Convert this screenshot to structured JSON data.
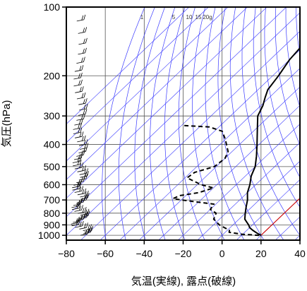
{
  "chart_data": {
    "type": "skew-t",
    "xlabel": "気温(実線), 露点(破線)",
    "ylabel": "気圧(hPa)",
    "xlim": [
      -80,
      40
    ],
    "ylim": [
      1050,
      100
    ],
    "y_scale": "log",
    "x_ticks": [
      -80,
      -60,
      -40,
      -20,
      0,
      20,
      40
    ],
    "x_tick_labels": [
      "−80",
      "−60",
      "−40",
      "−20",
      "0",
      "20",
      "40"
    ],
    "y_ticks": [
      100,
      200,
      300,
      400,
      500,
      600,
      700,
      800,
      900,
      1000
    ],
    "y_tick_labels": [
      "100",
      "200",
      "300",
      "400",
      "500",
      "600",
      "700",
      "800",
      "900",
      "1000"
    ],
    "mixing_ratio_labels": [
      "1",
      "5",
      "10",
      "15",
      "20g"
    ],
    "grid": true,
    "series": [
      {
        "style": "solid",
        "points": [
          [
            1000,
            20
          ],
          [
            980,
            17
          ],
          [
            950,
            13
          ],
          [
            925,
            10
          ],
          [
            900,
            8
          ],
          [
            880,
            6
          ],
          [
            850,
            3
          ],
          [
            800,
            0
          ],
          [
            750,
            -3
          ],
          [
            700,
            -6
          ],
          [
            650,
            -10
          ],
          [
            600,
            -13
          ],
          [
            550,
            -17
          ],
          [
            500,
            -20
          ],
          [
            450,
            -25
          ],
          [
            400,
            -31
          ],
          [
            350,
            -38
          ],
          [
            300,
            -46
          ],
          [
            270,
            -49
          ],
          [
            250,
            -52
          ],
          [
            230,
            -55
          ],
          [
            200,
            -57
          ],
          [
            170,
            -60
          ],
          [
            150,
            -61
          ],
          [
            130,
            -62
          ],
          [
            115,
            -63
          ],
          [
            100,
            -64
          ]
        ]
      },
      {
        "style": "dashed",
        "points": [
          [
            1000,
            19
          ],
          [
            990,
            10
          ],
          [
            970,
            2
          ],
          [
            950,
            1
          ],
          [
            925,
            -3
          ],
          [
            900,
            -7
          ],
          [
            850,
            -13
          ],
          [
            800,
            -15
          ],
          [
            770,
            -20
          ],
          [
            730,
            -21
          ],
          [
            700,
            -40
          ],
          [
            690,
            -45
          ],
          [
            670,
            -43
          ],
          [
            650,
            -35
          ],
          [
            620,
            -30
          ],
          [
            600,
            -38
          ],
          [
            560,
            -49
          ],
          [
            530,
            -48
          ],
          [
            500,
            -41
          ],
          [
            460,
            -40
          ],
          [
            430,
            -42
          ],
          [
            380,
            -50
          ],
          [
            350,
            -56
          ],
          [
            335,
            -65
          ],
          [
            330,
            -80
          ]
        ]
      }
    ],
    "reference_lines": {
      "isotherm_color": "#cc0000",
      "isotherm_temp_at_1000hPa": 20,
      "adiabat_color": "#3a3aff",
      "grid_color": "#555555"
    },
    "wind_barbs": {
      "count": 60
    }
  }
}
